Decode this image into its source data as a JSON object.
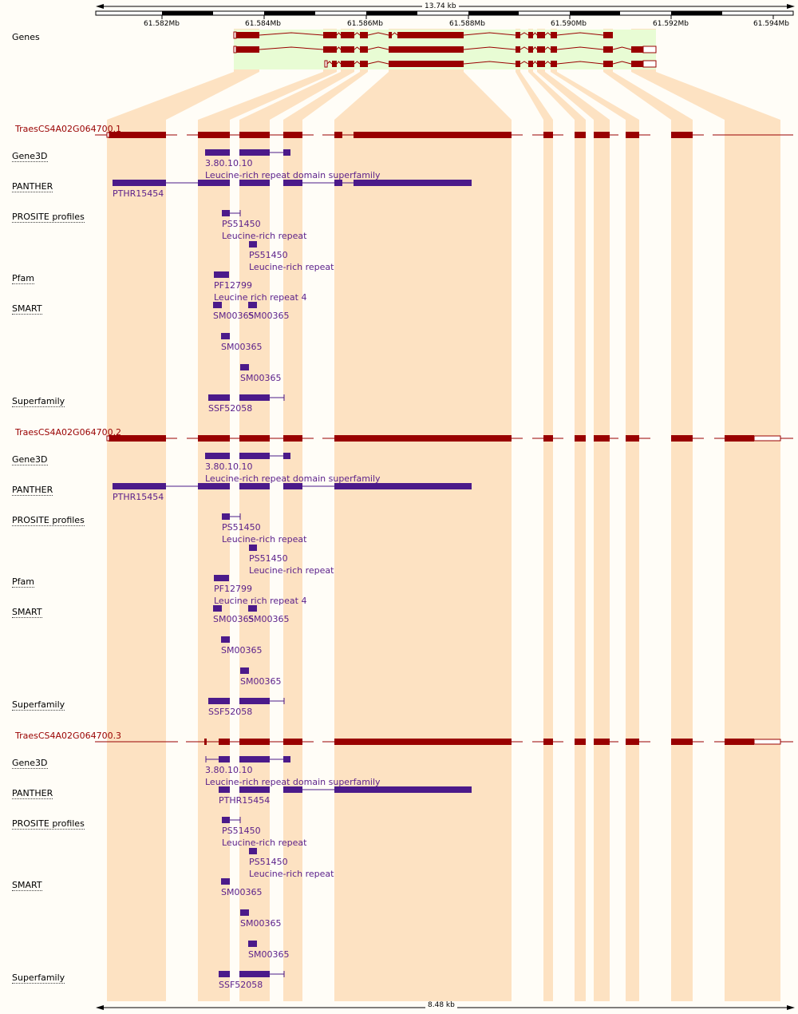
{
  "ruler": {
    "top_length": "13.74 kb",
    "bottom_length": "8.48 kb",
    "ticks": [
      "61.582Mb",
      "61.584Mb",
      "61.586Mb",
      "61.588Mb",
      "61.590Mb",
      "61.592Mb",
      "61.594Mb"
    ]
  },
  "genes_label": "Genes",
  "transcripts": [
    {
      "name": "TraesCS4A02G064700.1",
      "tracks": [
        {
          "label": "Gene3D",
          "features": [
            {
              "label": "3.80.10.10",
              "desc": "Leucine-rich repeat domain superfamily"
            }
          ]
        },
        {
          "label": "PANTHER",
          "features": [
            {
              "label": "PTHR15454",
              "desc": ""
            }
          ]
        },
        {
          "label": "PROSITE profiles",
          "features": [
            {
              "label": "PS51450",
              "desc": "Leucine-rich repeat"
            },
            {
              "label": "PS51450",
              "desc": "Leucine-rich repeat"
            }
          ]
        },
        {
          "label": "Pfam",
          "features": [
            {
              "label": "PF12799",
              "desc": "Leucine rich repeat 4"
            }
          ]
        },
        {
          "label": "SMART",
          "features": [
            {
              "label": "SM00365",
              "desc": ""
            },
            {
              "label": "SM00365",
              "desc": ""
            },
            {
              "label": "SM00365",
              "desc": ""
            },
            {
              "label": "SM00365",
              "desc": ""
            }
          ]
        },
        {
          "label": "Superfamily",
          "features": [
            {
              "label": "SSF52058",
              "desc": ""
            }
          ]
        }
      ]
    },
    {
      "name": "TraesCS4A02G064700.2",
      "tracks": [
        {
          "label": "Gene3D",
          "features": [
            {
              "label": "3.80.10.10",
              "desc": "Leucine-rich repeat domain superfamily"
            }
          ]
        },
        {
          "label": "PANTHER",
          "features": [
            {
              "label": "PTHR15454",
              "desc": ""
            }
          ]
        },
        {
          "label": "PROSITE profiles",
          "features": [
            {
              "label": "PS51450",
              "desc": "Leucine-rich repeat"
            },
            {
              "label": "PS51450",
              "desc": "Leucine-rich repeat"
            }
          ]
        },
        {
          "label": "Pfam",
          "features": [
            {
              "label": "PF12799",
              "desc": "Leucine rich repeat 4"
            }
          ]
        },
        {
          "label": "SMART",
          "features": [
            {
              "label": "SM00365",
              "desc": ""
            },
            {
              "label": "SM00365",
              "desc": ""
            },
            {
              "label": "SM00365",
              "desc": ""
            },
            {
              "label": "SM00365",
              "desc": ""
            }
          ]
        },
        {
          "label": "Superfamily",
          "features": [
            {
              "label": "SSF52058",
              "desc": ""
            }
          ]
        }
      ]
    },
    {
      "name": "TraesCS4A02G064700.3",
      "tracks": [
        {
          "label": "Gene3D",
          "features": [
            {
              "label": "3.80.10.10",
              "desc": "Leucine-rich repeat domain superfamily"
            }
          ]
        },
        {
          "label": "PANTHER",
          "features": [
            {
              "label": "PTHR15454",
              "desc": ""
            }
          ]
        },
        {
          "label": "PROSITE profiles",
          "features": [
            {
              "label": "PS51450",
              "desc": "Leucine-rich repeat"
            },
            {
              "label": "PS51450",
              "desc": "Leucine-rich repeat"
            }
          ]
        },
        {
          "label": "SMART",
          "features": [
            {
              "label": "SM00365",
              "desc": ""
            },
            {
              "label": "SM00365",
              "desc": ""
            },
            {
              "label": "SM00365",
              "desc": ""
            }
          ]
        },
        {
          "label": "Superfamily",
          "features": [
            {
              "label": "SSF52058",
              "desc": ""
            }
          ]
        }
      ]
    }
  ],
  "colors": {
    "exon": "#990000",
    "domain": "#4b1a8a",
    "domain_text": "#5a1f8a",
    "highlight": "#fde2c2",
    "gene_bg": "#e8fcd4",
    "transcript_text": "#990000",
    "background": "#fffdf7"
  }
}
